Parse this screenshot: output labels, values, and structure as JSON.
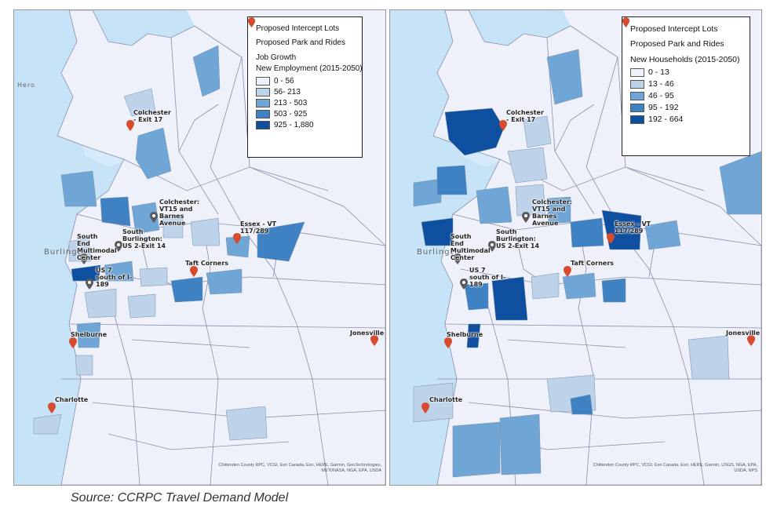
{
  "legend_symbols": {
    "intercept_lots": "Proposed Intercept Lots",
    "park_and_rides": "Proposed Park and Rides"
  },
  "colors": {
    "water": "#c6e3f7",
    "land": "#eef0fa",
    "border": "#8b8ea8",
    "class_1": "#eef2fb",
    "class_2": "#bcd3ea",
    "class_3": "#6fa6d6",
    "class_4": "#3e82c4",
    "class_5": "#0f4fa0",
    "intercept_pin": "#5a5a5a",
    "park_pin": "#d64a2e"
  },
  "left_map": {
    "legend_title_1": "Job Growth",
    "legend_title_2": "New Employment (2015-2050)",
    "classes": [
      "0 - 56",
      "56- 213",
      "213 - 503",
      "503 - 925",
      "925 - 1,880"
    ],
    "attribution_1": "Chittenden County RPC, VCGI, Esri Canada, Esri, HERE, Garmin, GeoTechnologies,",
    "attribution_2": "METI/NASA, NGA, EPA, USDA"
  },
  "right_map": {
    "legend_title": "New Households (2015-2050)",
    "classes": [
      "0 - 13",
      "13 - 46",
      "46 - 95",
      "95 - 192",
      "192 - 664"
    ],
    "attribution_1": "Chittenden County RPC, VCGI, Esri Canada, Esri, HERE, Garmin, USGS, NGA, EPA,",
    "attribution_2": "USDA, NPS"
  },
  "places": {
    "colchester_exit17": "Colchester - Exit 17",
    "colchester_vt15": "Colchester: VT15 and Barnes Avenue",
    "essex": "Essex - VT 117/289",
    "south_end": "South End Multimodal Center",
    "south_burlington": "South Burlington: US 2-Exit 14",
    "us7": "US 7 south of I-189",
    "taft": "Taft Corners",
    "shelburne": "Shelburne",
    "charlotte": "Charlotte",
    "jonesville": "Jonesville"
  },
  "basemap": {
    "burlington": "Burlingt",
    "hero": "Hero"
  },
  "caption": "Source: CCRPC Travel Demand Model"
}
